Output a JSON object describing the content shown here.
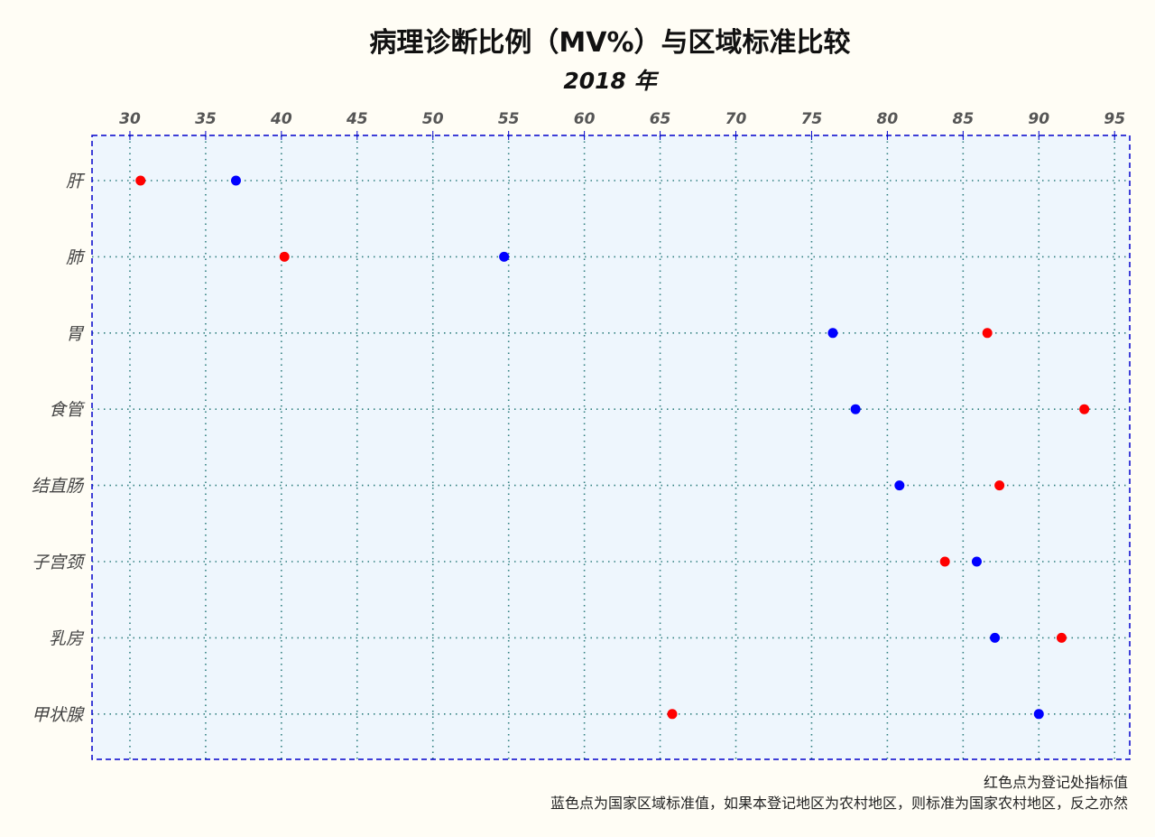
{
  "chart_data": {
    "type": "scatter",
    "title": "病理诊断比例（MV%）与区域标准比较",
    "subtitle": "2018 年",
    "categories": [
      "肝",
      "肺",
      "胃",
      "食管",
      "结直肠",
      "子宫颈",
      "乳房",
      "甲状腺"
    ],
    "series": [
      {
        "color": "#ff0000",
        "values": [
          30.7,
          40.2,
          86.6,
          93.0,
          87.4,
          83.8,
          91.5,
          65.8
        ]
      },
      {
        "color": "#0000ff",
        "values": [
          37.0,
          54.7,
          76.4,
          77.9,
          80.8,
          85.9,
          87.1,
          90.0
        ]
      }
    ],
    "xlim": [
      27.5,
      96
    ],
    "xticks": [
      30,
      35,
      40,
      45,
      50,
      55,
      60,
      65,
      70,
      75,
      80,
      85,
      90,
      95
    ],
    "x_axis_position": "top",
    "grid": true,
    "grid_color": "#2f7f7f",
    "frame_color": "#0000cc",
    "plot_background": "#eef6fd"
  },
  "footnotes": {
    "line1": "红色点为登记处指标值",
    "line2": "蓝色点为国家区域标准值，如果本登记地区为农村地区，则标准为国家农村地区，反之亦然"
  }
}
